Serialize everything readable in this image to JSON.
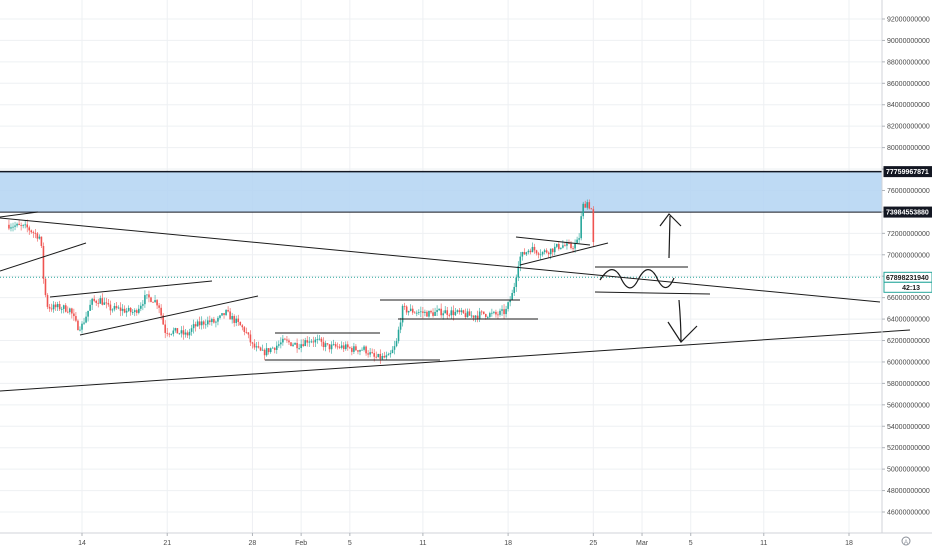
{
  "chart_data": {
    "type": "candlestick",
    "grid": true,
    "colors": {
      "up": "#26a69a",
      "down": "#ef5350",
      "zone_fill": "#b3d4f2",
      "zone_border": "#131722",
      "trendline": "#1b1b1b",
      "current_price_line": "#26a69a",
      "grid": "#eef0f3",
      "axis_text": "#4a4a4a"
    },
    "y_axis": {
      "position": "right",
      "range": [
        44800000000,
        93000000000
      ],
      "ticks": [
        "92000000000",
        "90000000000",
        "88000000000",
        "86000000000",
        "84000000000",
        "82000000000",
        "80000000000",
        "78000000000",
        "76000000000",
        "74000000000",
        "72000000000",
        "70000000000",
        "68000000000",
        "66000000000",
        "64000000000",
        "62000000000",
        "60000000000",
        "58000000000",
        "56000000000",
        "54000000000",
        "52000000000",
        "50000000000",
        "48000000000",
        "46000000000"
      ]
    },
    "x_axis": {
      "start_day": 8,
      "end_day": 70,
      "ticks": [
        {
          "label": "14",
          "day": 14
        },
        {
          "label": "21",
          "day": 21
        },
        {
          "label": "28",
          "day": 28
        },
        {
          "label": "Feb",
          "day": 32
        },
        {
          "label": "5",
          "day": 36
        },
        {
          "label": "11",
          "day": 42
        },
        {
          "label": "18",
          "day": 49
        },
        {
          "label": "25",
          "day": 56
        },
        {
          "label": "Mar",
          "day": 60
        },
        {
          "label": "5",
          "day": 64
        },
        {
          "label": "11",
          "day": 70
        },
        {
          "label": "18",
          "day": 77
        }
      ]
    },
    "price_tags": [
      {
        "label": "77759967871",
        "value": 77759967871,
        "style": "dark"
      },
      {
        "label": "73984553880",
        "value": 73984553880,
        "style": "dark"
      },
      {
        "label": "67898231940",
        "value": 67898231940,
        "style": "green"
      },
      {
        "label": "42:13",
        "value": 67100000000,
        "style": "green"
      }
    ],
    "resistance_zone": {
      "top": 77759967871,
      "bottom": 73984553880
    },
    "current_price": 67898231940,
    "anchor_points": [
      {
        "day": 8.0,
        "price": 72800000000
      },
      {
        "day": 9.5,
        "price": 72500000000
      },
      {
        "day": 10.6,
        "price": 71600000000
      },
      {
        "day": 10.9,
        "price": 66800000000
      },
      {
        "day": 11.2,
        "price": 65100000000
      },
      {
        "day": 12.2,
        "price": 65100000000
      },
      {
        "day": 13.0,
        "price": 64900000000
      },
      {
        "day": 13.6,
        "price": 63300000000
      },
      {
        "day": 14.0,
        "price": 63400000000
      },
      {
        "day": 14.8,
        "price": 65600000000
      },
      {
        "day": 15.5,
        "price": 65800000000
      },
      {
        "day": 16.2,
        "price": 65000000000
      },
      {
        "day": 17.2,
        "price": 64900000000
      },
      {
        "day": 18.3,
        "price": 64600000000
      },
      {
        "day": 19.2,
        "price": 66000000000
      },
      {
        "day": 19.8,
        "price": 65900000000
      },
      {
        "day": 20.3,
        "price": 65400000000
      },
      {
        "day": 20.8,
        "price": 62900000000
      },
      {
        "day": 21.8,
        "price": 62800000000
      },
      {
        "day": 22.6,
        "price": 62500000000
      },
      {
        "day": 23.2,
        "price": 63300000000
      },
      {
        "day": 24.2,
        "price": 63800000000
      },
      {
        "day": 25.0,
        "price": 63700000000
      },
      {
        "day": 25.8,
        "price": 64600000000
      },
      {
        "day": 26.6,
        "price": 63800000000
      },
      {
        "day": 27.4,
        "price": 62900000000
      },
      {
        "day": 28.0,
        "price": 61500000000
      },
      {
        "day": 28.8,
        "price": 60800000000
      },
      {
        "day": 29.6,
        "price": 61300000000
      },
      {
        "day": 30.6,
        "price": 61900000000
      },
      {
        "day": 31.8,
        "price": 61600000000
      },
      {
        "day": 32.6,
        "price": 62100000000
      },
      {
        "day": 33.4,
        "price": 61900000000
      },
      {
        "day": 34.2,
        "price": 61400000000
      },
      {
        "day": 35.4,
        "price": 61400000000
      },
      {
        "day": 36.2,
        "price": 61200000000
      },
      {
        "day": 37.2,
        "price": 61200000000
      },
      {
        "day": 38.0,
        "price": 60400000000
      },
      {
        "day": 39.2,
        "price": 60400000000
      },
      {
        "day": 39.8,
        "price": 61600000000
      },
      {
        "day": 40.3,
        "price": 64900000000
      },
      {
        "day": 41.4,
        "price": 64700000000
      },
      {
        "day": 42.6,
        "price": 64500000000
      },
      {
        "day": 43.6,
        "price": 64700000000
      },
      {
        "day": 44.6,
        "price": 64600000000
      },
      {
        "day": 46.0,
        "price": 64300000000
      },
      {
        "day": 47.0,
        "price": 64500000000
      },
      {
        "day": 48.0,
        "price": 64400000000
      },
      {
        "day": 48.8,
        "price": 64700000000
      },
      {
        "day": 49.4,
        "price": 66500000000
      },
      {
        "day": 49.9,
        "price": 69700000000
      },
      {
        "day": 50.8,
        "price": 70600000000
      },
      {
        "day": 51.8,
        "price": 70200000000
      },
      {
        "day": 52.6,
        "price": 70500000000
      },
      {
        "day": 53.4,
        "price": 70900000000
      },
      {
        "day": 54.2,
        "price": 70700000000
      },
      {
        "day": 54.8,
        "price": 71300000000
      },
      {
        "day": 55.1,
        "price": 74500000000
      },
      {
        "day": 55.5,
        "price": 74900000000
      },
      {
        "day": 55.9,
        "price": 74100000000
      },
      {
        "day": 56.1,
        "price": 67900000000
      }
    ]
  }
}
